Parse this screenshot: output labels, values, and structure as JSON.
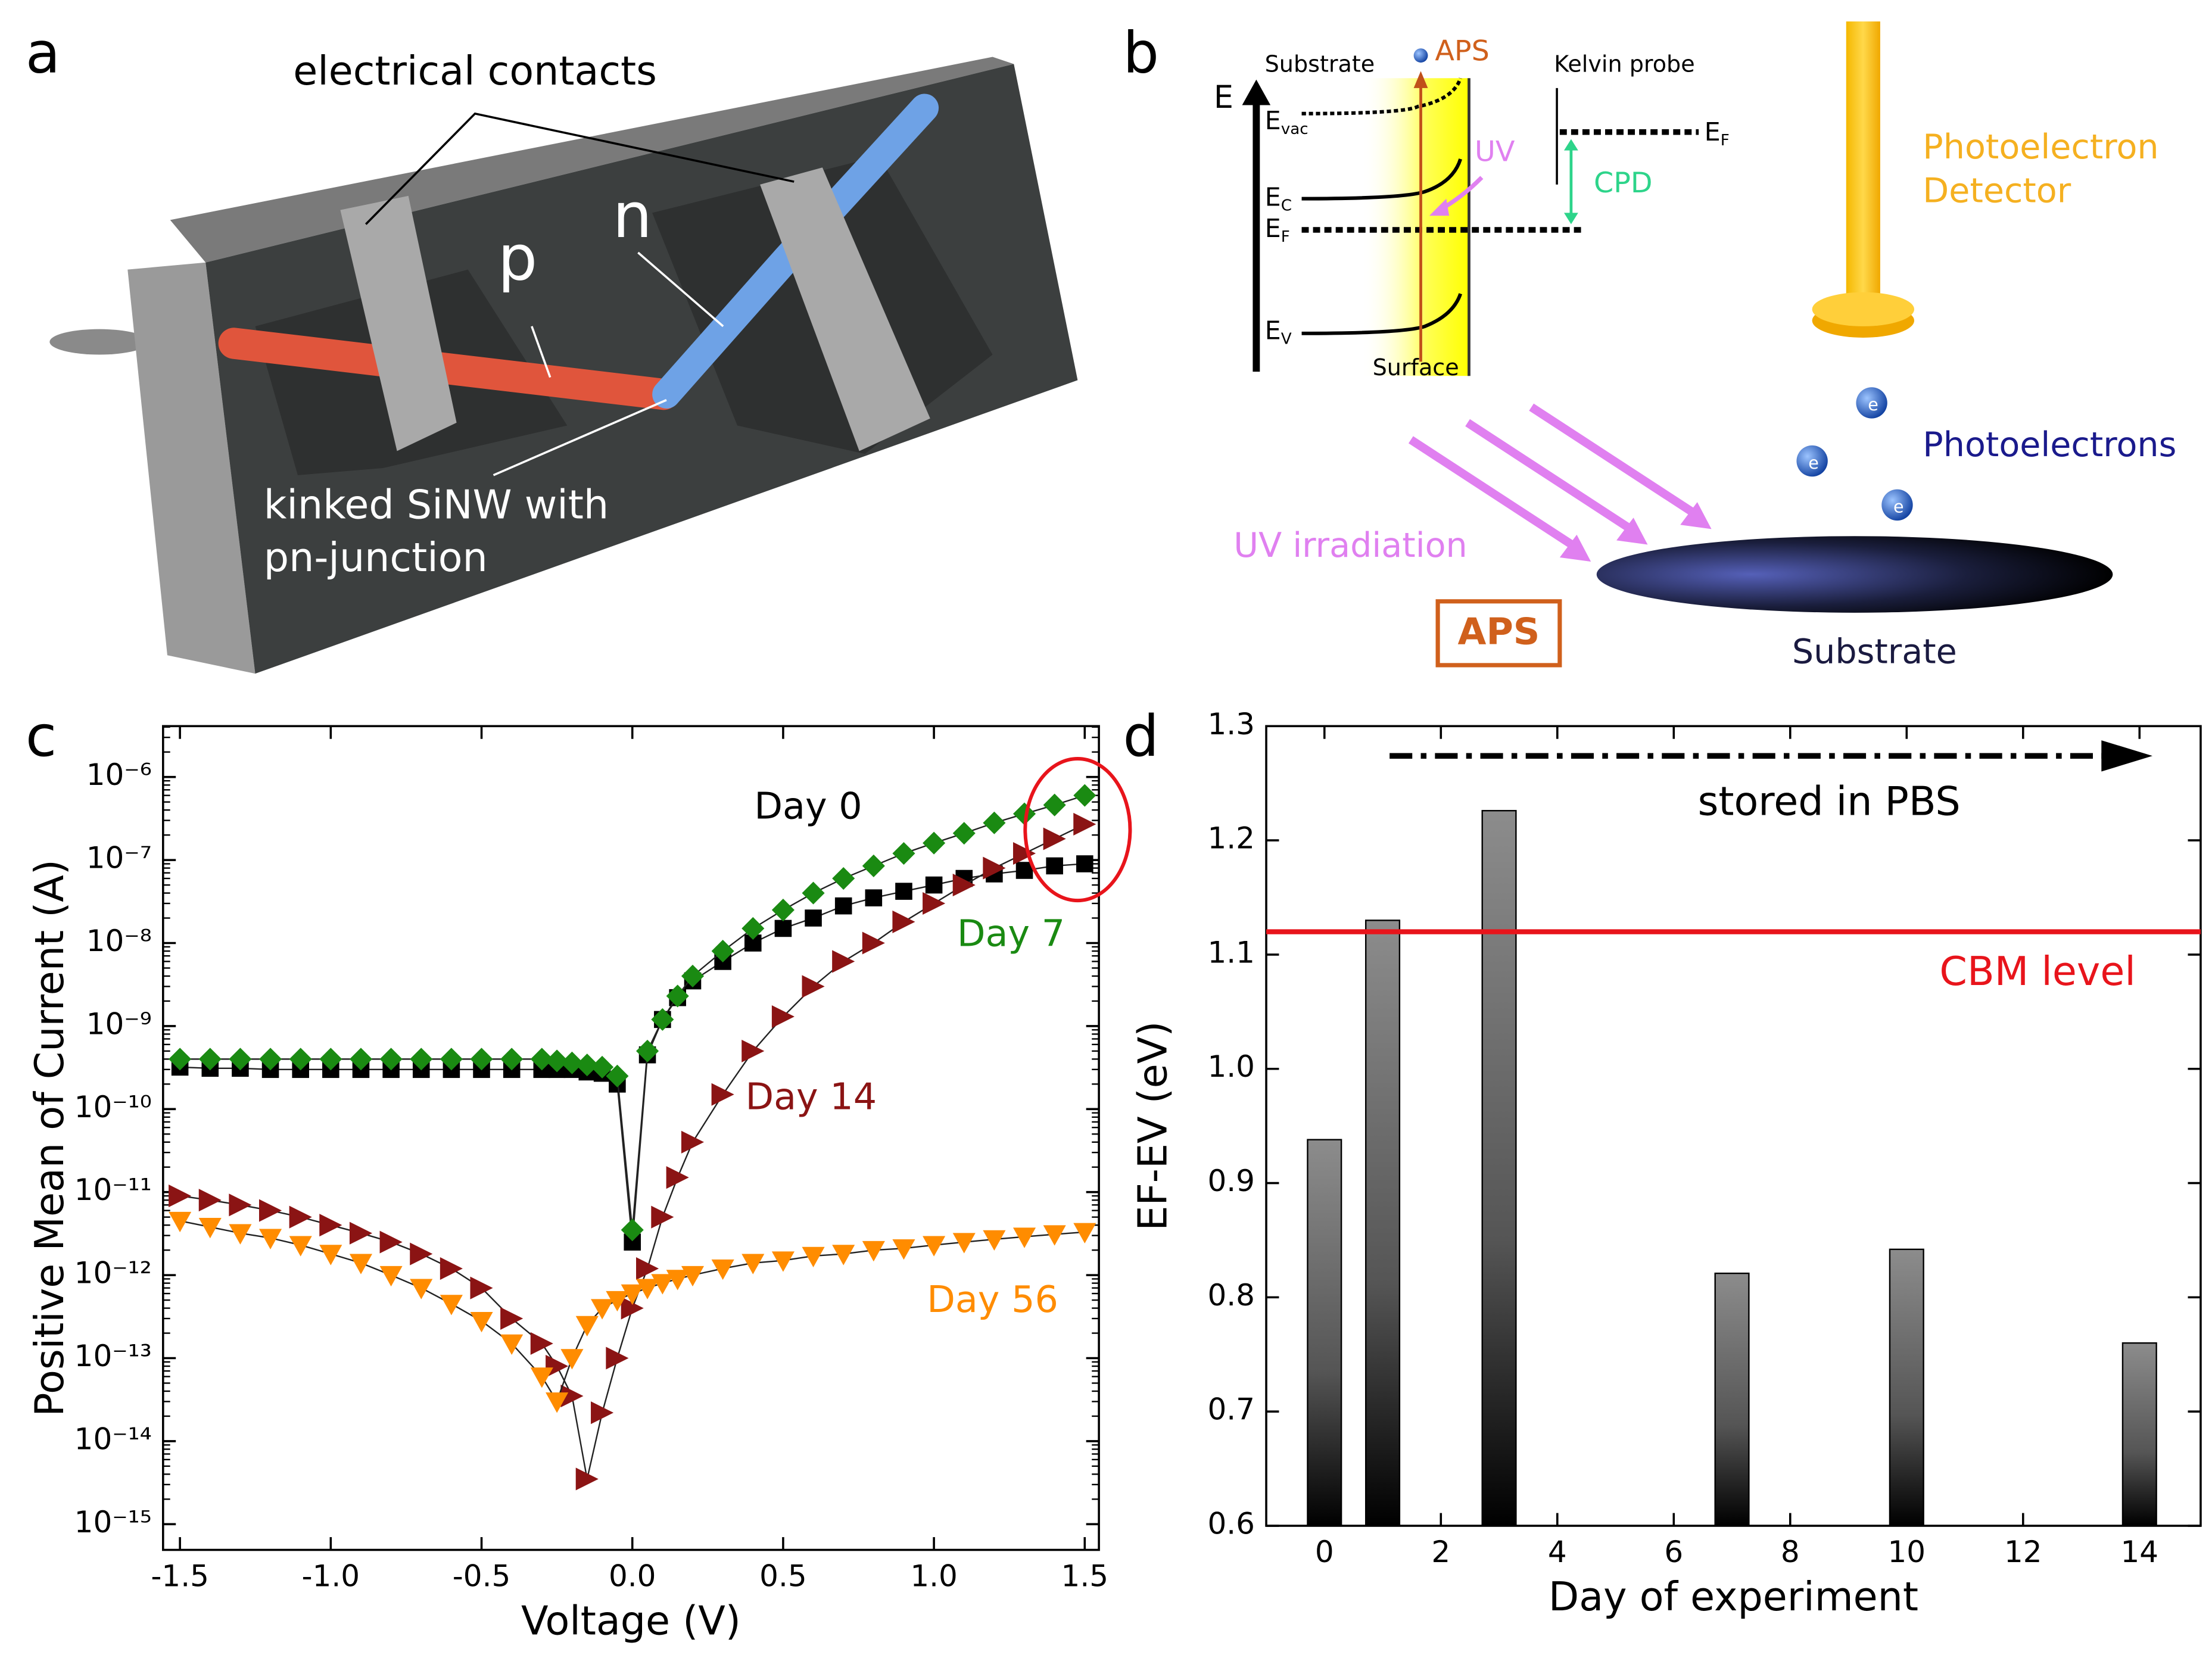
{
  "panel_labels": [
    "a",
    "b",
    "c",
    "d"
  ],
  "panel_a": {
    "contacts_label": "electrical contacts",
    "p_label": "p",
    "n_label": "n",
    "wire_label": [
      "kinked SiNW with",
      "pn-junction"
    ]
  },
  "panel_b": {
    "substrate_top": "Substrate",
    "aps_top": "APS",
    "kelvin": "Kelvin probe",
    "energy_axis": "E",
    "levels": {
      "evac": {
        "main": "E",
        "sub": "vac"
      },
      "ef_probe": {
        "main": "E",
        "sub": "F"
      },
      "ec": {
        "main": "E",
        "sub": "C"
      },
      "ef": {
        "main": "E",
        "sub": "F"
      },
      "ev": {
        "main": "E",
        "sub": "V"
      }
    },
    "uv": "UV",
    "cpd": "CPD",
    "surface": "Surface",
    "detector": [
      "Photoelectron",
      "Detector"
    ],
    "photoelectrons": "Photoelectrons",
    "electron": "e",
    "uv_irradiation": "UV irradiation",
    "aps_box": "APS",
    "substrate_bottom": "Substrate"
  },
  "chart_data": [
    {
      "type": "line",
      "xlabel": "Voltage (V)",
      "ylabel": "Positive Mean of Current (A)",
      "log_y": true,
      "x": [
        -1.5,
        -1.4,
        -1.3,
        -1.2,
        -1.1,
        -1.0,
        -0.9,
        -0.8,
        -0.7,
        -0.6,
        -0.5,
        -0.4,
        -0.3,
        -0.25,
        -0.2,
        -0.15,
        -0.1,
        -0.05,
        0,
        0.05,
        0.1,
        0.15,
        0.2,
        0.3,
        0.4,
        0.5,
        0.6,
        0.7,
        0.8,
        0.9,
        1.0,
        1.1,
        1.2,
        1.3,
        1.4,
        1.5
      ],
      "xlim": [
        -1.556,
        1.547
      ],
      "xticks": [
        -1.5,
        {
          "value": -1.0,
          "label": "-1.0"
        },
        -0.5,
        {
          "value": 0,
          "label": "0.0"
        },
        0.5,
        {
          "value": 1.0,
          "label": "1.0"
        },
        1.5
      ],
      "ylim": [
        4.9e-16,
        4.1e-06
      ],
      "yticks": [
        {
          "value": 1e-15,
          "label": "10⁻¹⁵"
        },
        {
          "value": 1e-14,
          "label": "10⁻¹⁴"
        },
        {
          "value": 1e-13,
          "label": "10⁻¹³"
        },
        {
          "value": 1e-12,
          "label": "10⁻¹²"
        },
        {
          "value": 1e-11,
          "label": "10⁻¹¹"
        },
        {
          "value": 1e-10,
          "label": "10⁻¹⁰"
        },
        {
          "value": 1e-09,
          "label": "10⁻⁹"
        },
        {
          "value": 1e-08,
          "label": "10⁻⁸"
        },
        {
          "value": 1e-07,
          "label": "10⁻⁷"
        },
        {
          "value": 1e-06,
          "label": "10⁻⁶"
        }
      ],
      "series": [
        {
          "name": "Day 0",
          "color": "#000000",
          "marker": "square",
          "values": [
            3.2e-10,
            3.1e-10,
            3.1e-10,
            3e-10,
            3e-10,
            3e-10,
            3e-10,
            3e-10,
            3e-10,
            3e-10,
            3e-10,
            3e-10,
            3e-10,
            3e-10,
            3e-10,
            2.8e-10,
            2.7e-10,
            2e-10,
            2.5e-12,
            4.5e-10,
            1.2e-09,
            2.2e-09,
            3.5e-09,
            6e-09,
            1e-08,
            1.5e-08,
            2e-08,
            2.8e-08,
            3.5e-08,
            4.2e-08,
            5e-08,
            6e-08,
            6.8e-08,
            7.5e-08,
            8.5e-08,
            9e-08
          ]
        },
        {
          "name": "Day 7",
          "color": "#1a8a12",
          "marker": "diamond",
          "values": [
            4e-10,
            4e-10,
            4e-10,
            4e-10,
            4e-10,
            4e-10,
            4e-10,
            4e-10,
            4e-10,
            4e-10,
            4e-10,
            4e-10,
            4e-10,
            3.8e-10,
            3.6e-10,
            3.4e-10,
            3.2e-10,
            2.5e-10,
            3.5e-12,
            5e-10,
            1.2e-09,
            2.3e-09,
            4e-09,
            8e-09,
            1.5e-08,
            2.5e-08,
            4e-08,
            6e-08,
            8.5e-08,
            1.2e-07,
            1.6e-07,
            2.1e-07,
            2.8e-07,
            3.6e-07,
            4.6e-07,
            6e-07
          ]
        },
        {
          "name": "Day 14",
          "color": "#8b1414",
          "marker": "triangle-right",
          "values": [
            9e-12,
            8e-12,
            7e-12,
            6e-12,
            5e-12,
            4e-12,
            3.2e-12,
            2.5e-12,
            1.8e-12,
            1.2e-12,
            7e-13,
            3e-13,
            1.5e-13,
            8e-14,
            3.5e-14,
            3.5e-15,
            2.2e-14,
            1e-13,
            4e-13,
            1.2e-12,
            5e-12,
            1.5e-11,
            4e-11,
            1.5e-10,
            5e-10,
            1.3e-09,
            3e-09,
            6e-09,
            1e-08,
            1.8e-08,
            3e-08,
            5e-08,
            8e-08,
            1.2e-07,
            1.8e-07,
            2.7e-07
          ]
        },
        {
          "name": "Day 56",
          "color": "#ff8c00",
          "marker": "triangle-down",
          "values": [
            4.5e-12,
            3.8e-12,
            3.2e-12,
            2.8e-12,
            2.3e-12,
            1.8e-12,
            1.4e-12,
            1e-12,
            7e-13,
            4.5e-13,
            2.8e-13,
            1.5e-13,
            6e-14,
            3e-14,
            1e-13,
            2.5e-13,
            4e-13,
            5e-13,
            6e-13,
            7e-13,
            8e-13,
            9e-13,
            1e-12,
            1.2e-12,
            1.4e-12,
            1.5e-12,
            1.7e-12,
            1.8e-12,
            2e-12,
            2.1e-12,
            2.3e-12,
            2.5e-12,
            2.7e-12,
            2.9e-12,
            3.1e-12,
            3.3e-12
          ]
        }
      ]
    },
    {
      "type": "bar",
      "xlabel": "Day of experiment",
      "ylabel": "EF-EV (eV)",
      "x": [
        0,
        1,
        3,
        7,
        10,
        14
      ],
      "values": [
        0.938,
        1.13,
        1.226,
        0.821,
        0.842,
        0.76
      ],
      "xlim": [
        -1,
        15.05
      ],
      "xticks": [
        0,
        2,
        4,
        6,
        8,
        10,
        12,
        14
      ],
      "ylim": [
        0.6,
        1.3
      ],
      "yticks": [
        0.6,
        0.7,
        0.8,
        0.9,
        {
          "value": 1.0,
          "label": "1.0"
        },
        1.1,
        1.2,
        1.3
      ],
      "hline": {
        "value": 1.12,
        "label": "CBM level",
        "color": "#e8141b"
      },
      "annotation": "stored in PBS"
    }
  ]
}
